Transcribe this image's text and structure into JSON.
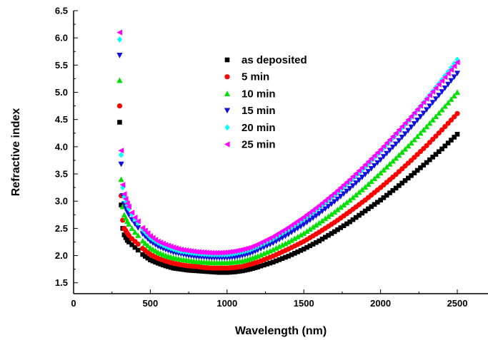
{
  "chart_data": {
    "type": "scatter",
    "title": "",
    "xlabel": "Wavelength (nm)",
    "ylabel": "Refractive index",
    "xlim": [
      0,
      2700
    ],
    "ylim": [
      1.3,
      6.5
    ],
    "xticks": [
      "0",
      "500",
      "1000",
      "1500",
      "2000",
      "2500"
    ],
    "yticks": [
      "1.5",
      "2.0",
      "2.5",
      "3.0",
      "3.5",
      "4.0",
      "4.5",
      "5.0",
      "5.5",
      "6.0",
      "6.5"
    ],
    "grid": false,
    "legend_position": "top-center",
    "x": [
      300,
      310,
      320,
      330,
      340,
      350,
      360,
      380,
      400,
      420,
      450,
      500,
      550,
      600,
      650,
      700,
      750,
      800,
      850,
      900,
      950,
      1000,
      1050,
      1100,
      1150,
      1200,
      1300,
      1400,
      1500,
      1600,
      1700,
      1800,
      1900,
      2000,
      2100,
      2200,
      2300,
      2400,
      2500
    ],
    "series": [
      {
        "name": "as deposited",
        "color": "#000000",
        "marker": "square",
        "values": [
          4.45,
          2.93,
          2.5,
          2.38,
          2.33,
          2.28,
          2.25,
          2.2,
          2.15,
          2.1,
          2.02,
          1.92,
          1.86,
          1.81,
          1.77,
          1.75,
          1.73,
          1.72,
          1.71,
          1.7,
          1.69,
          1.69,
          1.7,
          1.72,
          1.75,
          1.79,
          1.88,
          1.99,
          2.12,
          2.27,
          2.44,
          2.62,
          2.82,
          3.02,
          3.24,
          3.47,
          3.71,
          3.96,
          4.23
        ]
      },
      {
        "name": "5 min",
        "color": "#ff0000",
        "marker": "circle",
        "values": [
          4.75,
          3.1,
          2.65,
          2.5,
          2.46,
          2.41,
          2.37,
          2.31,
          2.26,
          2.21,
          2.13,
          2.02,
          1.95,
          1.9,
          1.86,
          1.83,
          1.81,
          1.8,
          1.78,
          1.77,
          1.77,
          1.77,
          1.78,
          1.8,
          1.84,
          1.88,
          1.99,
          2.12,
          2.26,
          2.43,
          2.61,
          2.81,
          3.02,
          3.25,
          3.49,
          3.75,
          4.02,
          4.31,
          4.61
        ]
      },
      {
        "name": "10 min",
        "color": "#00e000",
        "marker": "triangle-up",
        "values": [
          5.22,
          3.4,
          2.9,
          2.75,
          2.69,
          2.63,
          2.58,
          2.5,
          2.43,
          2.37,
          2.27,
          2.14,
          2.06,
          2.0,
          1.96,
          1.93,
          1.91,
          1.89,
          1.88,
          1.87,
          1.87,
          1.87,
          1.88,
          1.9,
          1.94,
          1.99,
          2.11,
          2.25,
          2.41,
          2.6,
          2.8,
          3.02,
          3.26,
          3.52,
          3.79,
          4.07,
          4.37,
          4.68,
          5.0
        ]
      },
      {
        "name": "15 min",
        "color": "#1010e0",
        "marker": "triangle-down",
        "values": [
          5.68,
          3.68,
          3.1,
          2.95,
          2.87,
          2.8,
          2.75,
          2.66,
          2.58,
          2.51,
          2.4,
          2.26,
          2.17,
          2.11,
          2.06,
          2.03,
          2.0,
          1.98,
          1.97,
          1.96,
          1.96,
          1.96,
          1.97,
          2.0,
          2.04,
          2.1,
          2.23,
          2.39,
          2.57,
          2.77,
          2.99,
          3.23,
          3.49,
          3.76,
          4.05,
          4.36,
          4.68,
          5.01,
          5.35
        ]
      },
      {
        "name": "20 min",
        "color": "#00ffff",
        "marker": "diamond",
        "values": [
          5.97,
          3.85,
          3.25,
          3.08,
          2.99,
          2.92,
          2.86,
          2.76,
          2.67,
          2.6,
          2.48,
          2.33,
          2.24,
          2.17,
          2.12,
          2.08,
          2.06,
          2.04,
          2.03,
          2.02,
          2.02,
          2.02,
          2.04,
          2.07,
          2.11,
          2.17,
          2.31,
          2.48,
          2.67,
          2.88,
          3.11,
          3.36,
          3.63,
          3.92,
          4.22,
          4.54,
          4.88,
          5.23,
          5.6
        ]
      },
      {
        "name": "25 min",
        "color": "#ff00ff",
        "marker": "triangle-left",
        "values": [
          6.1,
          3.93,
          3.3,
          3.13,
          3.04,
          2.96,
          2.9,
          2.79,
          2.7,
          2.63,
          2.51,
          2.36,
          2.26,
          2.2,
          2.15,
          2.11,
          2.09,
          2.07,
          2.06,
          2.05,
          2.05,
          2.06,
          2.08,
          2.11,
          2.15,
          2.21,
          2.35,
          2.52,
          2.71,
          2.92,
          3.15,
          3.4,
          3.67,
          3.95,
          4.25,
          4.56,
          4.88,
          5.21,
          5.55
        ]
      }
    ]
  }
}
